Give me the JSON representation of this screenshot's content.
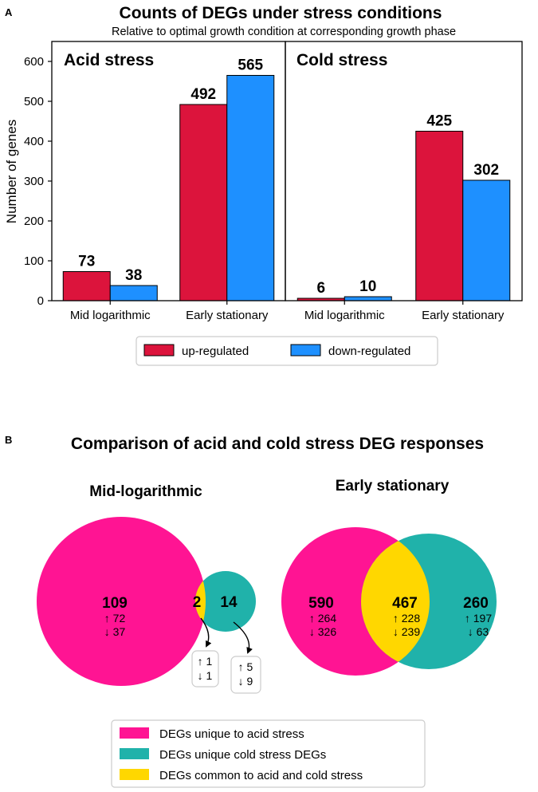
{
  "panel_a": {
    "letter": "A",
    "title": "Counts of DEGs under stress conditions",
    "subtitle": "Relative to optimal growth condition at corresponding growth phase"
  },
  "panel_b": {
    "letter": "B",
    "title": "Comparison of acid and cold stress DEG responses"
  },
  "colors": {
    "up": "#dc143c",
    "down": "#1e90ff",
    "acid_unique": "#ff1493",
    "cold_unique": "#20b2aa",
    "common": "#ffd700"
  },
  "chart_data": [
    {
      "type": "bar",
      "title": "Counts of DEGs under stress conditions",
      "subtitle": "Relative to optimal growth condition at corresponding growth phase",
      "ylabel": "Number of genes",
      "ylim": [
        0,
        650
      ],
      "yticks": [
        "0",
        "100",
        "200",
        "300",
        "400",
        "500",
        "600"
      ],
      "legend": [
        "up-regulated",
        "down-regulated"
      ],
      "facets": [
        {
          "name": "Acid stress",
          "categories": [
            "Mid logarithmic",
            "Early stationary"
          ],
          "series": [
            {
              "name": "up-regulated",
              "values": [
                73,
                492
              ]
            },
            {
              "name": "down-regulated",
              "values": [
                38,
                565
              ]
            }
          ]
        },
        {
          "name": "Cold stress",
          "categories": [
            "Mid logarithmic",
            "Early stationary"
          ],
          "series": [
            {
              "name": "up-regulated",
              "values": [
                6,
                425
              ]
            },
            {
              "name": "down-regulated",
              "values": [
                10,
                302
              ]
            }
          ]
        }
      ]
    },
    {
      "type": "venn",
      "title": "Comparison of acid and cold stress DEG responses",
      "legend": [
        "DEGs unique to acid stress",
        "DEGs unique cold stress DEGs",
        "DEGs common to acid and cold stress"
      ],
      "diagrams": [
        {
          "name": "Mid-logarithmic",
          "acid_unique": {
            "total": "109",
            "up": "↑ 72",
            "down": "↓ 37"
          },
          "common": {
            "total": "2",
            "up": "↑ 1",
            "down": "↓ 1"
          },
          "cold_unique": {
            "total": "14",
            "up": "↑ 5",
            "down": "↓ 9"
          }
        },
        {
          "name": "Early stationary",
          "acid_unique": {
            "total": "590",
            "up": "↑ 264",
            "down": "↓ 326"
          },
          "common": {
            "total": "467",
            "up": "↑ 228",
            "down": "↓ 239"
          },
          "cold_unique": {
            "total": "260",
            "up": "↑ 197",
            "down": "↓ 63"
          }
        }
      ]
    }
  ]
}
